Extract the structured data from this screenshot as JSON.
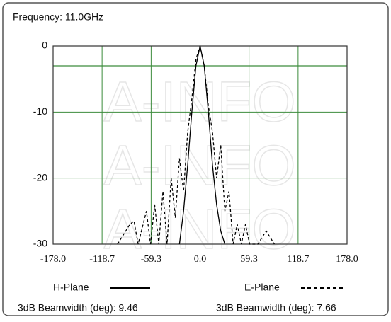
{
  "chart_data": {
    "type": "line",
    "title": "Frequency: 11.0GHz",
    "watermark": "A-INFO",
    "xlim": [
      -178,
      178
    ],
    "ylim": [
      -30,
      0
    ],
    "xticks": [
      {
        "value": -178,
        "label": "-178.0"
      },
      {
        "value": -118.7,
        "label": "-118.7"
      },
      {
        "value": -59.3,
        "label": "-59.3"
      },
      {
        "value": 0,
        "label": "0.0"
      },
      {
        "value": 59.3,
        "label": "59.3"
      },
      {
        "value": 118.7,
        "label": "118.7"
      },
      {
        "value": 178,
        "label": "178.0"
      }
    ],
    "yticks": [
      0,
      -10,
      -20,
      -30
    ],
    "hlines": [
      -3
    ],
    "grid": true,
    "grid_color": "#3c8c3c",
    "series": [
      {
        "name": "H-Plane",
        "color": "#000000",
        "dash": false,
        "x": [
          -25,
          -20,
          -15,
          -10,
          -5,
          0,
          5,
          10,
          15,
          20,
          25,
          30
        ],
        "values": [
          -30,
          -25,
          -18,
          -10,
          -3,
          0,
          -3,
          -10,
          -18,
          -24,
          -28,
          -30
        ]
      },
      {
        "name": "E-Plane",
        "color": "#000000",
        "dash": true,
        "x": [
          -100,
          -85,
          -80,
          -75,
          -65,
          -60,
          -55,
          -50,
          -45,
          -40,
          -35,
          -30,
          -25,
          -20,
          -15,
          -10,
          -5,
          0,
          5,
          10,
          15,
          20,
          25,
          30,
          35,
          40,
          45,
          50,
          55,
          60,
          70,
          80,
          85,
          90
        ],
        "values": [
          -30,
          -27,
          -26.5,
          -30,
          -25,
          -30,
          -24,
          -30,
          -22,
          -30,
          -20,
          -26,
          -17,
          -22,
          -13,
          -8,
          -2,
          0,
          -3,
          -9,
          -13,
          -20,
          -15,
          -25,
          -22,
          -30,
          -27,
          -30,
          -27,
          -30,
          -30,
          -28,
          -29,
          -30
        ]
      }
    ],
    "annotations": [
      "3dB Beamwidth (deg): 9.46",
      "3dB Beamwidth (deg): 7.66"
    ]
  }
}
